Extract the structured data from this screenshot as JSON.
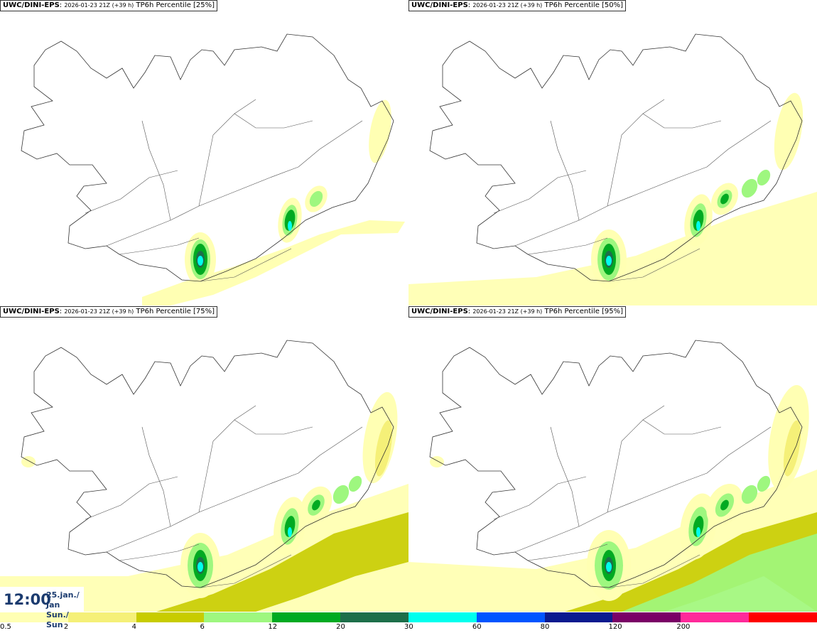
{
  "panels": [
    {
      "source": "UWC/DINI-EPS",
      "run": "2026-01-23 21Z (+39 h)",
      "field": "TP6h Percentile [25%]",
      "level": 0
    },
    {
      "source": "UWC/DINI-EPS",
      "run": "2026-01-23 21Z (+39 h)",
      "field": "TP6h Percentile [50%]",
      "level": 1
    },
    {
      "source": "UWC/DINI-EPS",
      "run": "2026-01-23 21Z (+39 h)",
      "field": "TP6h Percentile [75%]",
      "level": 2
    },
    {
      "source": "UWC/DINI-EPS",
      "run": "2026-01-23 21Z (+39 h)",
      "field": "TP6h Percentile [95%]",
      "level": 3
    }
  ],
  "valid": {
    "time": "12:00",
    "date": "25.jan./ Jan",
    "day": "Sun./ Sun"
  },
  "legend": {
    "colors": [
      "#ffffb3",
      "#f5f078",
      "#c8cc00",
      "#9ef77f",
      "#00aa22",
      "#1d6f4a",
      "#00ffee",
      "#0055ff",
      "#0a1a8f",
      "#7a0066",
      "#ff2a9a",
      "#ff0000"
    ],
    "ticks": [
      "0.5",
      "2",
      "4",
      "6",
      "12",
      "20",
      "30",
      "60",
      "80",
      "120",
      "200"
    ]
  }
}
